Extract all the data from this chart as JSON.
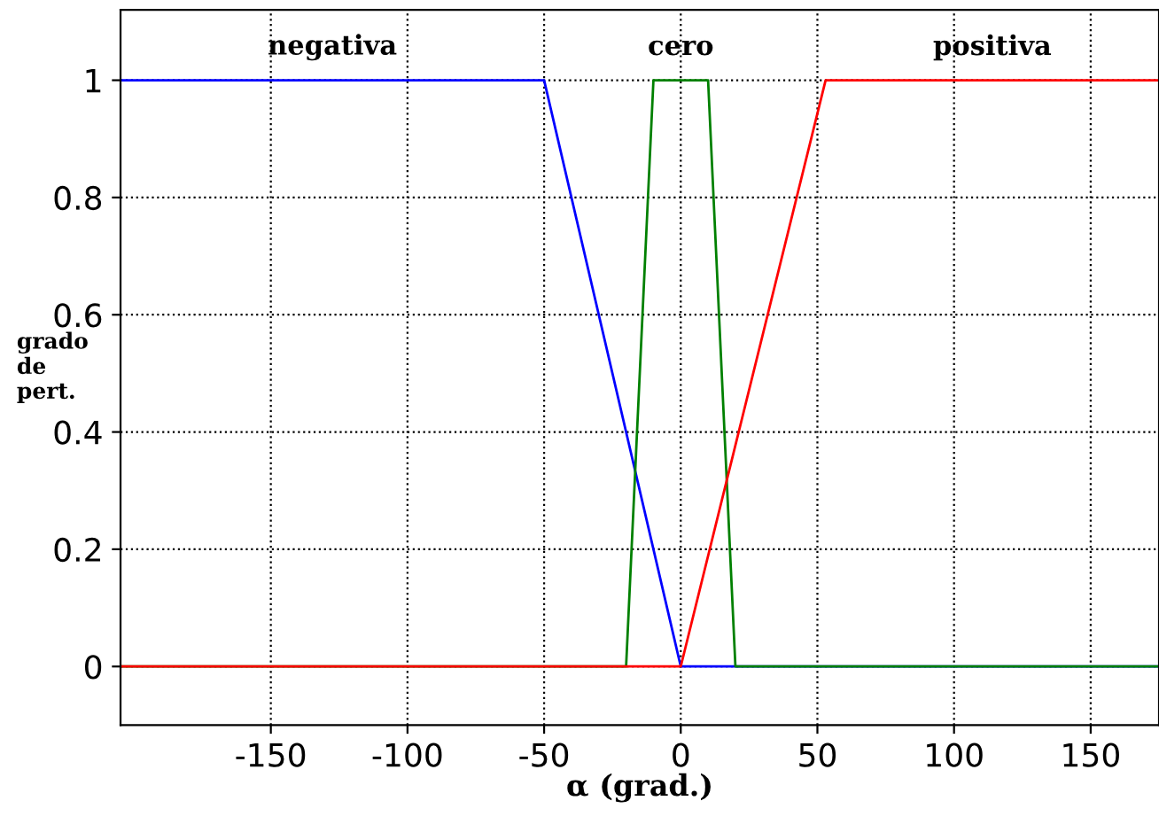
{
  "chart_data": {
    "type": "line",
    "xlabel": "α (grad.)",
    "ylabel": "grado\nde\npert.",
    "xlim": [
      -205,
      175
    ],
    "ylim": [
      -0.1,
      1.12
    ],
    "xticks": [
      -150,
      -100,
      -50,
      0,
      50,
      100,
      150
    ],
    "yticks": [
      0,
      0.2,
      0.4,
      0.6,
      0.8,
      1
    ],
    "grid": true,
    "line_style": "solid",
    "series": [
      {
        "name": "negativa",
        "color": "#0000ff",
        "x": [
          -205,
          -50,
          0,
          175
        ],
        "values": [
          1,
          1,
          0,
          0
        ]
      },
      {
        "name": "cero",
        "color": "#008000",
        "x": [
          -205,
          -20,
          -10,
          10,
          20,
          175
        ],
        "values": [
          0,
          0,
          1,
          1,
          0,
          0
        ]
      },
      {
        "name": "positiva",
        "color": "#ff0000",
        "x": [
          -205,
          0,
          53,
          175
        ],
        "values": [
          0,
          0,
          1,
          1
        ]
      }
    ]
  }
}
